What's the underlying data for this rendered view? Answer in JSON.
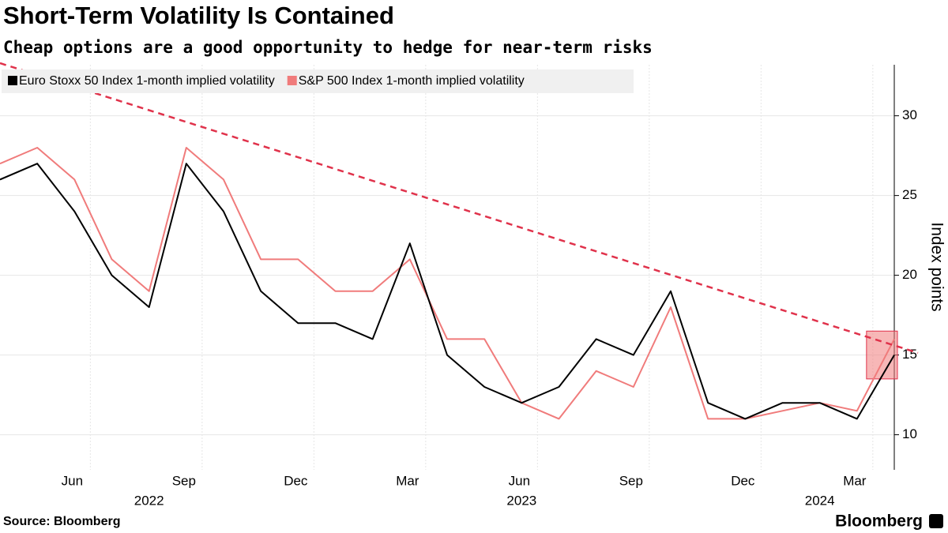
{
  "chart_data": {
    "type": "line",
    "title": "Short-Term Volatility Is Contained",
    "subtitle": "Cheap options are a good opportunity to hedge for near-term risks",
    "y_label": "Index points",
    "source": "Source: Bloomberg",
    "brand": "Bloomberg",
    "x": [
      "2022-04",
      "2022-05",
      "2022-06",
      "2022-07",
      "2022-08",
      "2022-09",
      "2022-10",
      "2022-11",
      "2022-12",
      "2023-01",
      "2023-02",
      "2023-03",
      "2023-04",
      "2023-05",
      "2023-06",
      "2023-07",
      "2023-08",
      "2023-09",
      "2023-10",
      "2023-11",
      "2023-12",
      "2024-01",
      "2024-02",
      "2024-03",
      "2024-04"
    ],
    "series": [
      {
        "name": "Euro Stoxx 50 Index 1-month implied volatility",
        "color": "#000000",
        "values": [
          26,
          27,
          24,
          20,
          18,
          27,
          24,
          19,
          17,
          17,
          16,
          22,
          15,
          13,
          12,
          13,
          16,
          15,
          19,
          12,
          11,
          12,
          12,
          11,
          15
        ]
      },
      {
        "name": "S&P 500 Index 1-month implied volatility",
        "color": "#f07b7b",
        "values": [
          27,
          28,
          26,
          21,
          19,
          28,
          26,
          21,
          21,
          19,
          19,
          21,
          16,
          16,
          12,
          11,
          14,
          13,
          18,
          11,
          11,
          11.5,
          12,
          11.5,
          16
        ]
      }
    ],
    "trendline": {
      "x": [
        "2022-04",
        "2024-04"
      ],
      "values": [
        33.3,
        15.6
      ],
      "color": "#e0324b"
    },
    "highlight": {
      "x": [
        "2024-03",
        "2024-04"
      ],
      "y": [
        13.5,
        16.5
      ],
      "color": "#f07b7b"
    },
    "xlim": [
      "2022-04",
      "2024-04"
    ],
    "xticks": [
      {
        "value": "2022-06",
        "label": "Jun"
      },
      {
        "value": "2022-09",
        "label": "Sep"
      },
      {
        "value": "2022-12",
        "label": "Dec"
      },
      {
        "value": "2023-03",
        "label": "Mar"
      },
      {
        "value": "2023-06",
        "label": "Jun"
      },
      {
        "value": "2023-09",
        "label": "Sep"
      },
      {
        "value": "2023-12",
        "label": "Dec"
      },
      {
        "value": "2024-03",
        "label": "Mar"
      }
    ],
    "year_labels": [
      {
        "value": "2022-08",
        "label": "2022"
      },
      {
        "value": "2023-06",
        "label": "2023"
      },
      {
        "value": "2024-02",
        "label": "2024"
      }
    ],
    "ylim": [
      7.8,
      33.2
    ],
    "yticks": [
      10,
      15,
      20,
      25,
      30
    ],
    "grid": true
  }
}
